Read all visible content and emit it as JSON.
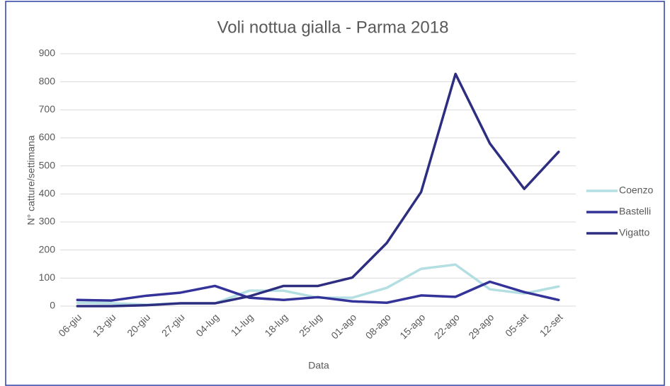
{
  "chart_data": {
    "type": "line",
    "title": "Voli nottua gialla - Parma 2018",
    "x_label": "Data",
    "y_label": "N° catture/settimana",
    "categories": [
      "06-giu",
      "13-giu",
      "20-giu",
      "27-giu",
      "04-lug",
      "11-lug",
      "18-lug",
      "25-lug",
      "01-ago",
      "08-ago",
      "15-ago",
      "22-ago",
      "29-ago",
      "05-set",
      "12-set"
    ],
    "series": [
      {
        "name": "Coenzo",
        "color": "#b4dfe2",
        "values": [
          12,
          10,
          5,
          10,
          10,
          55,
          55,
          30,
          30,
          65,
          133,
          148,
          60,
          45,
          70
        ]
      },
      {
        "name": "Bastelli",
        "color": "#333399",
        "values": [
          22,
          20,
          37,
          48,
          72,
          30,
          22,
          32,
          17,
          12,
          38,
          33,
          87,
          50,
          22
        ]
      },
      {
        "name": "Vigatto",
        "color": "#2e2e80",
        "values": [
          0,
          0,
          3,
          10,
          10,
          35,
          72,
          72,
          102,
          225,
          407,
          828,
          580,
          418,
          550
        ]
      }
    ],
    "ylim": [
      0,
      900
    ],
    "yticks": [
      0,
      100,
      200,
      300,
      400,
      500,
      600,
      700,
      800,
      900
    ],
    "grid": true,
    "legend": "right"
  }
}
